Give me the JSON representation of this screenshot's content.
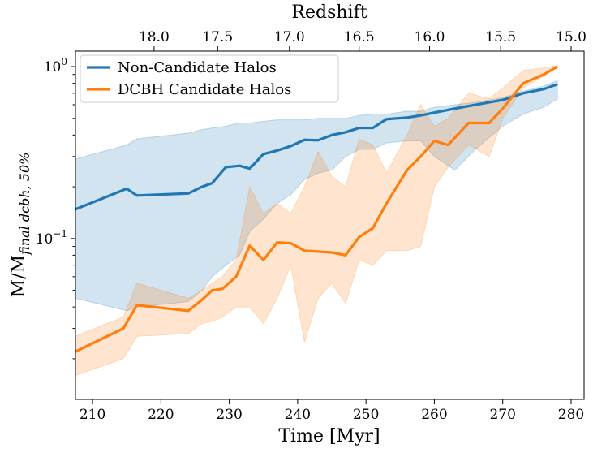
{
  "chart_data": {
    "type": "line",
    "xlabel": "Time [Myr]",
    "x2label": "Redshift",
    "ylabel": {
      "main": "M/M",
      "sub": "final dcbh, 50%"
    },
    "xlim": [
      207.5,
      281.9
    ],
    "xticks": [
      210,
      220,
      230,
      240,
      250,
      260,
      270,
      280
    ],
    "x2ticks": [
      {
        "value": 219.0,
        "label": "18.0"
      },
      {
        "value": 228.3,
        "label": "17.5"
      },
      {
        "value": 238.8,
        "label": "17.0"
      },
      {
        "value": 249.0,
        "label": "16.5"
      },
      {
        "value": 259.3,
        "label": "16.0"
      },
      {
        "value": 269.7,
        "label": "15.5"
      },
      {
        "value": 280.0,
        "label": "15.0"
      }
    ],
    "ylim": [
      0.0116,
      1.23
    ],
    "yscale": "log",
    "yticks": [
      {
        "value": 0.1,
        "label": "10^−1"
      },
      {
        "value": 1,
        "label": "10^0"
      }
    ],
    "yminorticks": [
      0.02,
      0.03,
      0.04,
      0.05,
      0.06,
      0.07,
      0.08,
      0.09,
      0.2,
      0.3,
      0.4,
      0.5,
      0.6,
      0.7,
      0.8,
      0.9
    ],
    "legend": "upper left",
    "series": [
      {
        "name": "Non-Candidate Halos",
        "color": "#1f77b4",
        "x": [
          207.5,
          215,
          216.5,
          224,
          226,
          227.5,
          229.5,
          231.5,
          233,
          235,
          237,
          239,
          241,
          243,
          245,
          247,
          249,
          251,
          253,
          256,
          258,
          260,
          263,
          266,
          270,
          273,
          276,
          278
        ],
        "values": [
          0.148,
          0.195,
          0.178,
          0.183,
          0.2,
          0.21,
          0.26,
          0.265,
          0.255,
          0.31,
          0.325,
          0.345,
          0.375,
          0.373,
          0.4,
          0.415,
          0.44,
          0.44,
          0.495,
          0.505,
          0.52,
          0.54,
          0.57,
          0.6,
          0.64,
          0.7,
          0.74,
          0.79
        ],
        "upper": [
          0.29,
          0.35,
          0.38,
          0.41,
          0.43,
          0.44,
          0.45,
          0.47,
          0.47,
          0.48,
          0.49,
          0.49,
          0.49,
          0.5,
          0.5,
          0.5,
          0.52,
          0.53,
          0.53,
          0.55,
          0.55,
          0.58,
          0.6,
          0.62,
          0.66,
          0.72,
          0.77,
          0.83
        ],
        "lower": [
          0.045,
          0.038,
          0.04,
          0.043,
          0.05,
          0.06,
          0.07,
          0.08,
          0.11,
          0.13,
          0.16,
          0.18,
          0.22,
          0.24,
          0.25,
          0.3,
          0.33,
          0.33,
          0.36,
          0.37,
          0.37,
          0.3,
          0.25,
          0.33,
          0.45,
          0.53,
          0.58,
          0.65
        ]
      },
      {
        "name": "DCBH Candidate Halos",
        "color": "#ff7f0e",
        "x": [
          207.5,
          214.5,
          216.5,
          224,
          226,
          227.5,
          229,
          231,
          233,
          235,
          237,
          239,
          241,
          243,
          245,
          247,
          249,
          251,
          253,
          256,
          258,
          260,
          262,
          265,
          268,
          270,
          273,
          276,
          278
        ],
        "values": [
          0.022,
          0.03,
          0.041,
          0.038,
          0.044,
          0.05,
          0.051,
          0.06,
          0.091,
          0.075,
          0.095,
          0.094,
          0.085,
          0.084,
          0.083,
          0.08,
          0.102,
          0.115,
          0.16,
          0.25,
          0.3,
          0.37,
          0.35,
          0.47,
          0.47,
          0.57,
          0.8,
          0.9,
          1.0
        ],
        "upper": [
          0.027,
          0.035,
          0.055,
          0.045,
          0.05,
          0.055,
          0.06,
          0.075,
          0.2,
          0.14,
          0.16,
          0.14,
          0.2,
          0.32,
          0.23,
          0.2,
          0.38,
          0.35,
          0.24,
          0.4,
          0.6,
          0.45,
          0.5,
          0.7,
          0.65,
          0.75,
          0.95,
          0.98,
          1.02
        ],
        "lower": [
          0.016,
          0.02,
          0.027,
          0.028,
          0.032,
          0.033,
          0.035,
          0.04,
          0.04,
          0.032,
          0.045,
          0.07,
          0.025,
          0.045,
          0.055,
          0.042,
          0.075,
          0.07,
          0.085,
          0.085,
          0.09,
          0.2,
          0.26,
          0.35,
          0.3,
          0.5,
          0.75,
          0.88,
          1.0
        ]
      }
    ]
  }
}
